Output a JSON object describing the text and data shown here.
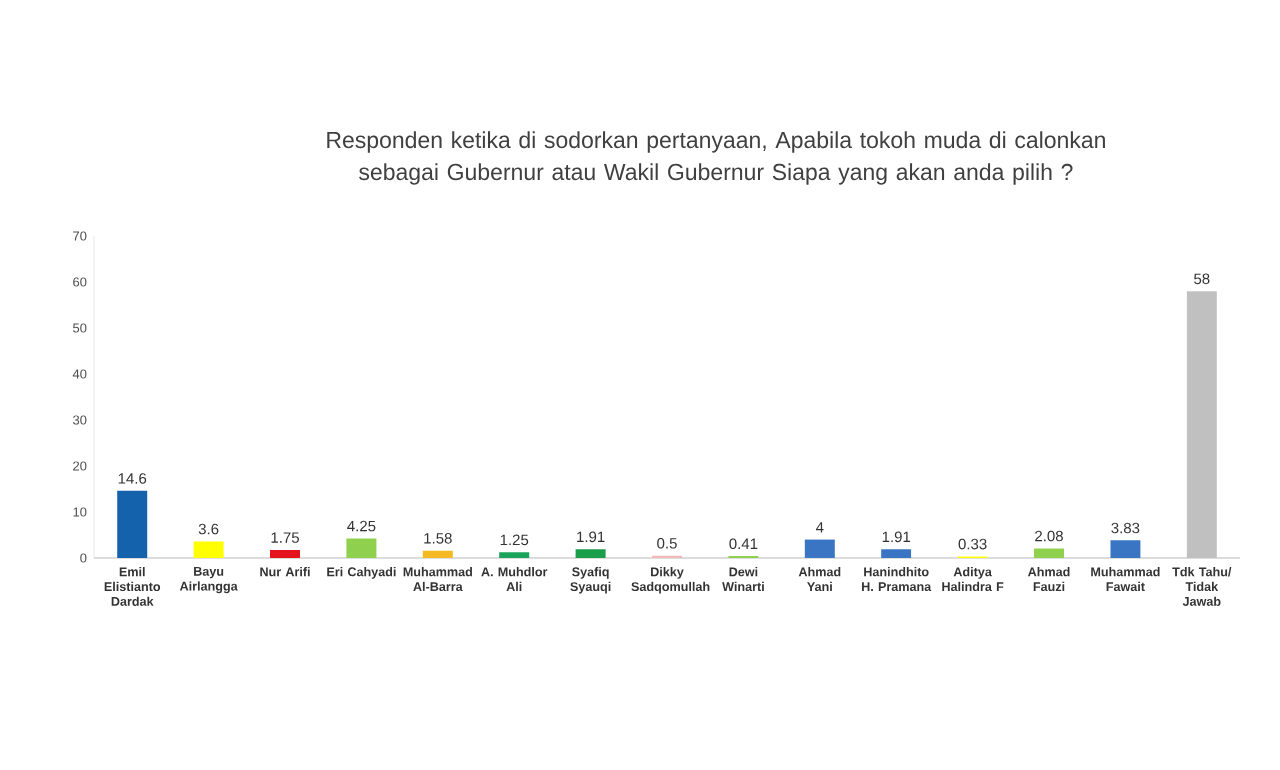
{
  "chart_data": {
    "type": "bar",
    "title": "Responden ketika di sodorkan pertanyaan, Apabila tokoh muda di calonkan sebagai Gubernur atau Wakil Gubernur Siapa yang akan anda pilih ?",
    "categories": [
      "Emil Elistianto Dardak",
      "Bayu Airlangga",
      "Nur Arifi",
      "Eri Cahyadi",
      "Muhammad Al-Barra",
      "A. Muhdlor Ali",
      "Syafiq Syauqi",
      "Dikky Sadqomullah",
      "Dewi Winarti",
      "Ahmad Yani",
      "Hanindhito H. Pramana",
      "Aditya Halindra F",
      "Ahmad Fauzi",
      "Muhammad Fawait",
      "Tdk Tahu/ Tidak Jawab"
    ],
    "values": [
      14.6,
      3.6,
      1.75,
      4.25,
      1.58,
      1.25,
      1.91,
      0.5,
      0.41,
      4,
      1.91,
      0.33,
      2.08,
      3.83,
      58
    ],
    "colors": [
      "#1461ac",
      "#ffff00",
      "#e3141b",
      "#8fd14f",
      "#f5b923",
      "#1aa35a",
      "#1a9e4a",
      "#f4b8b8",
      "#8fd14f",
      "#3a75c4",
      "#3a75c4",
      "#ffff00",
      "#8fd14f",
      "#3a75c4",
      "#c0c0c0"
    ],
    "ylim": [
      0,
      70
    ],
    "yticks": [
      0,
      10,
      20,
      30,
      40,
      50,
      60,
      70
    ],
    "data_labels": true
  }
}
